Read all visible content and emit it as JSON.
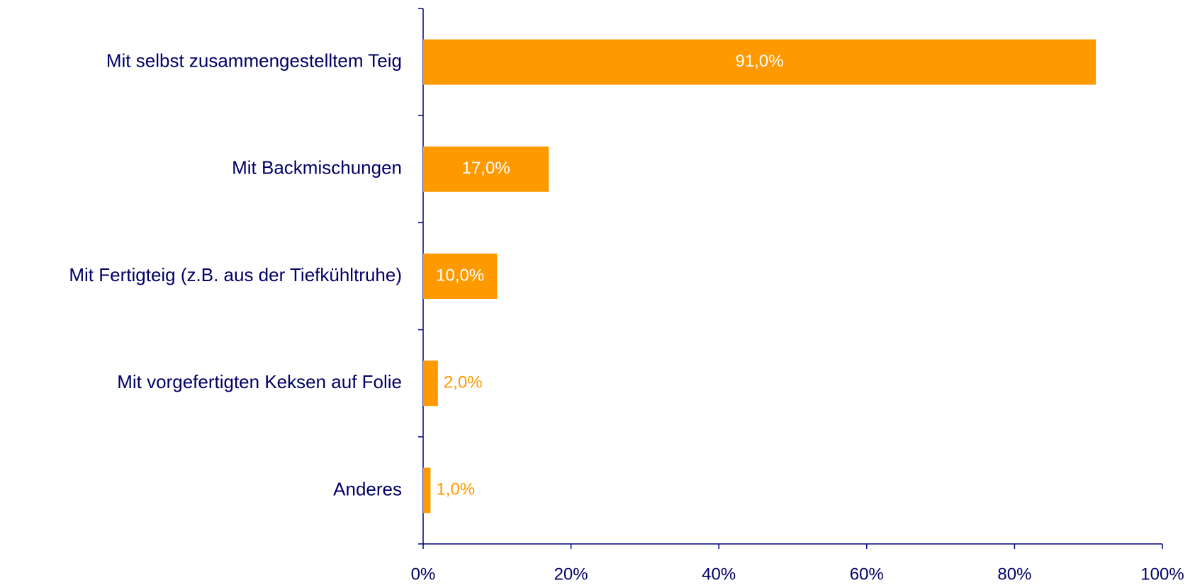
{
  "chart_data": {
    "type": "bar",
    "orientation": "horizontal",
    "categories": [
      "Mit selbst zusammengestelltem Teig",
      "Mit Backmischungen",
      "Mit Fertigteig (z.B. aus der Tiefkühltruhe)",
      "Mit vorgefertigten Keksen auf Folie",
      "Anderes"
    ],
    "values": [
      91,
      17,
      10,
      2,
      1
    ],
    "value_labels": [
      "91,0%",
      "17,0%",
      "10,0%",
      "2,0%",
      "1,0%"
    ],
    "color": "#ff9900",
    "xlim": [
      0,
      100
    ],
    "xticks": [
      {
        "value": 0,
        "label": "0%"
      },
      {
        "value": 20,
        "label": "20%"
      },
      {
        "value": 40,
        "label": "40%"
      },
      {
        "value": 60,
        "label": "60%"
      },
      {
        "value": 80,
        "label": "80%"
      },
      {
        "value": 100,
        "label": "100%"
      }
    ]
  }
}
